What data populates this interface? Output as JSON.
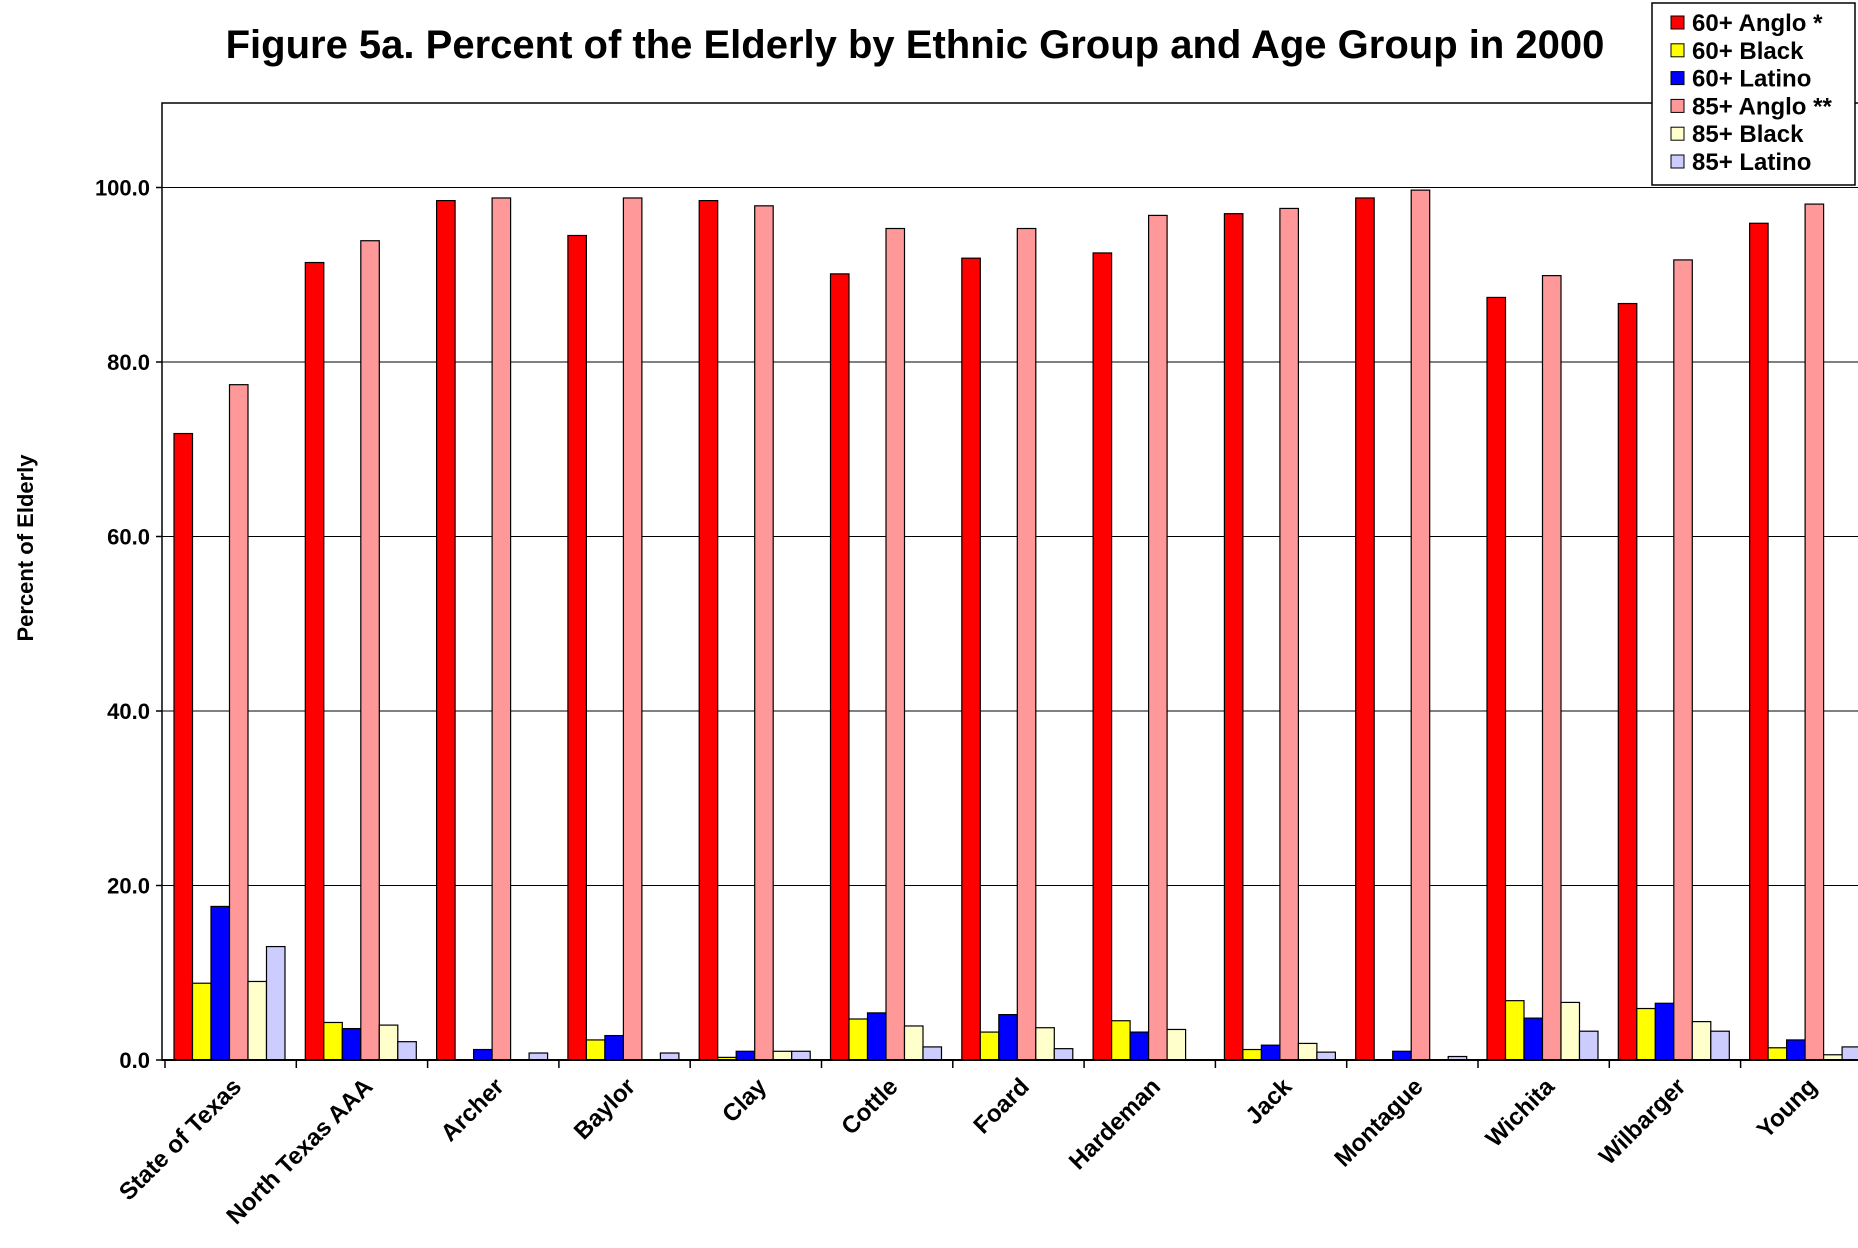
{
  "chart_data": {
    "type": "bar",
    "title": "Figure 5a.  Percent of the Elderly by Ethnic Group and Age Group in 2000",
    "ylabel": "Percent of Elderly",
    "xlabel": "",
    "ylim": [
      0,
      110
    ],
    "yticks": [
      {
        "value": 0,
        "label": "0.0"
      },
      {
        "value": 20,
        "label": "20.0"
      },
      {
        "value": 40,
        "label": "40.0"
      },
      {
        "value": 60,
        "label": "60.0"
      },
      {
        "value": 80,
        "label": "80.0"
      },
      {
        "value": 100,
        "label": "100.0"
      }
    ],
    "grid": true,
    "legend_position": "top-right",
    "categories": [
      "State of Texas",
      "North Texas AAA",
      "Archer",
      "Baylor",
      "Clay",
      "Cottle",
      "Foard",
      "Hardeman",
      "Jack",
      "Montague",
      "Wichita",
      "Wilbarger",
      "Young"
    ],
    "series": [
      {
        "name": "60+ Anglo *",
        "color": "#ff0000",
        "values": [
          71.8,
          91.4,
          98.5,
          94.5,
          98.5,
          90.1,
          91.9,
          92.5,
          97.0,
          98.8,
          87.4,
          86.7,
          95.9
        ]
      },
      {
        "name": "60+ Black",
        "color": "#ffff00",
        "values": [
          8.8,
          4.3,
          0.0,
          2.3,
          0.3,
          4.7,
          3.2,
          4.5,
          1.2,
          0.0,
          6.8,
          5.9,
          1.4
        ]
      },
      {
        "name": "60+ Latino",
        "color": "#0000ff",
        "values": [
          17.6,
          3.6,
          1.2,
          2.8,
          1.0,
          5.4,
          5.2,
          3.2,
          1.7,
          1.0,
          4.8,
          6.5,
          2.3
        ]
      },
      {
        "name": "85+ Anglo **",
        "color": "#ff9999",
        "values": [
          77.4,
          93.9,
          98.8,
          98.8,
          97.9,
          95.3,
          95.3,
          96.8,
          97.6,
          99.7,
          89.9,
          91.7,
          98.1
        ]
      },
      {
        "name": "85+ Black",
        "color": "#ffffcc",
        "values": [
          9.0,
          4.0,
          0.0,
          0.0,
          1.0,
          3.9,
          3.7,
          3.5,
          1.9,
          0.0,
          6.6,
          4.4,
          0.6
        ]
      },
      {
        "name": "85+ Latino",
        "color": "#ccccff",
        "values": [
          13.0,
          2.1,
          0.8,
          0.8,
          1.0,
          1.5,
          1.3,
          0.0,
          0.9,
          0.4,
          3.3,
          3.3,
          1.5
        ]
      }
    ]
  }
}
